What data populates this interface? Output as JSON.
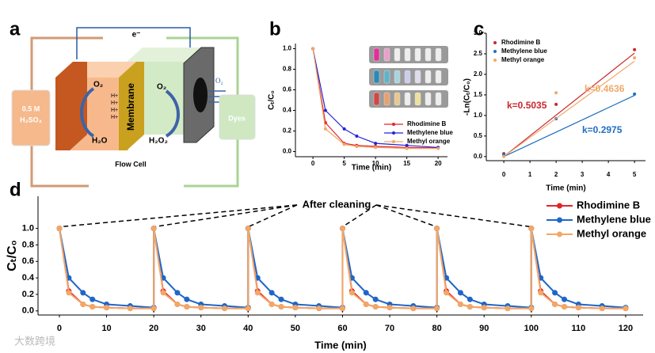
{
  "diagram": {
    "panel": "a",
    "electron": "e⁻",
    "left_o2": "O₂",
    "left_product": "H₂O",
    "membrane": "Membrane",
    "protons": [
      "H+",
      "H+",
      "H+",
      "H+"
    ],
    "right_o2": "O₂",
    "right_product": "H₂O₂",
    "inlet_o2": "O₂",
    "dyes": "Dyes",
    "electrolyte": [
      "0.5 M",
      "H₂SO₄"
    ],
    "caption": "Flow Cell"
  },
  "watermark": "大数跨境",
  "chart_data": [
    {
      "type": "line",
      "panel": "b",
      "x_label": "Time (min)",
      "y_label": "Cₜ/C₀",
      "legend": "lower right",
      "x": [
        0,
        2,
        5,
        7,
        10,
        15,
        20
      ],
      "xlim": [
        -2.8,
        21.5
      ],
      "xticks": [
        0,
        5,
        10,
        15,
        20
      ],
      "ylim": [
        -0.05,
        1.05
      ],
      "yticks": [
        {
          "value": 0,
          "label": "0.0"
        },
        {
          "value": 0.2,
          "label": "0.2"
        },
        {
          "value": 0.4,
          "label": "0.4"
        },
        {
          "value": 0.6,
          "label": "0.6"
        },
        {
          "value": 0.8,
          "label": "0.8"
        },
        {
          "value": 1,
          "label": "1.0"
        }
      ],
      "series": [
        {
          "name": "Rhodimine B",
          "color": "#e0242a",
          "values": [
            1.0,
            0.28,
            0.08,
            0.06,
            0.05,
            0.04,
            0.035
          ]
        },
        {
          "name": "Methylene blue",
          "color": "#2424d6",
          "values": [
            1.0,
            0.4,
            0.22,
            0.15,
            0.08,
            0.06,
            0.04
          ]
        },
        {
          "name": "Methyl orange",
          "color": "#f2a766",
          "values": [
            1.0,
            0.22,
            0.07,
            0.05,
            0.04,
            0.03,
            0.03
          ]
        }
      ]
    },
    {
      "type": "scatter",
      "panel": "c",
      "x_label": "Time (min)",
      "y_label": "-Ln(Cₜ/C₀)",
      "legend": "upper left",
      "x": [
        0,
        2,
        5
      ],
      "xlim": [
        -0.67,
        5.42
      ],
      "xticks": [
        0,
        1,
        2,
        3,
        4,
        5
      ],
      "ylim": [
        -0.1,
        3.0
      ],
      "yticks": [
        {
          "value": 0,
          "label": "0.0"
        },
        {
          "value": 0.5,
          "label": "0.5"
        },
        {
          "value": 1,
          "label": "1.0"
        },
        {
          "value": 1.5,
          "label": "1.5"
        },
        {
          "value": 2,
          "label": "2.0"
        },
        {
          "value": 2.5,
          "label": "2.5"
        },
        {
          "value": 3,
          "label": "3.0"
        }
      ],
      "series": [
        {
          "name": "Rhodimine B",
          "color": "#c8282c",
          "values": [
            0.07,
            1.27,
            2.6
          ],
          "fit": {
            "slope": 0.5035,
            "label": "k=0.5035"
          }
        },
        {
          "name": "Methylene blue",
          "color": "#1f6fc0",
          "values": [
            0.05,
            0.92,
            1.52
          ],
          "fit": {
            "slope": 0.2975,
            "label": "k=0.2975"
          }
        },
        {
          "name": "Methyl orange",
          "color": "#f0a868",
          "values": [
            0.0,
            1.55,
            2.4
          ],
          "fit": {
            "slope": 0.4636,
            "label": "k=0.4636"
          }
        }
      ]
    },
    {
      "type": "line",
      "panel": "d",
      "x_label": "Time (min)",
      "y_label": "Cₜ/C₀",
      "legend": "upper right",
      "annotation": "After cleaning",
      "x": [
        0,
        2,
        5,
        7,
        10,
        15,
        20,
        20,
        22,
        25,
        27,
        30,
        35,
        40,
        40,
        42,
        45,
        47,
        50,
        55,
        60,
        60,
        62,
        65,
        67,
        70,
        75,
        80,
        80,
        82,
        85,
        87,
        90,
        95,
        100,
        100,
        102,
        105,
        107,
        110,
        115,
        120
      ],
      "xlim": [
        -4.53,
        123.7
      ],
      "xticks": [
        0,
        10,
        20,
        30,
        40,
        50,
        60,
        70,
        80,
        90,
        100,
        110,
        120
      ],
      "ylim": [
        -0.05,
        1.39
      ],
      "yticks": [
        {
          "value": 0,
          "label": "0.0"
        },
        {
          "value": 0.2,
          "label": "0.2"
        },
        {
          "value": 0.4,
          "label": "0.4"
        },
        {
          "value": 0.6,
          "label": "0.6"
        },
        {
          "value": 0.8,
          "label": "0.8"
        },
        {
          "value": 1,
          "label": "1.0"
        }
      ],
      "series": [
        {
          "name": "Rhodimine B",
          "color": "#e0242a",
          "values": [
            1,
            0.24,
            0.08,
            0.05,
            0.04,
            0.03,
            0.03,
            1,
            0.24,
            0.08,
            0.05,
            0.04,
            0.03,
            0.03,
            1,
            0.24,
            0.08,
            0.05,
            0.04,
            0.03,
            0.03,
            1,
            0.24,
            0.08,
            0.05,
            0.04,
            0.03,
            0.03,
            1,
            0.24,
            0.08,
            0.05,
            0.04,
            0.03,
            0.03,
            1,
            0.24,
            0.08,
            0.05,
            0.04,
            0.03,
            0.03
          ]
        },
        {
          "name": "Methylene blue",
          "color": "#1f66c8",
          "values": [
            1,
            0.4,
            0.22,
            0.14,
            0.08,
            0.06,
            0.04,
            1,
            0.4,
            0.22,
            0.14,
            0.08,
            0.06,
            0.04,
            1,
            0.4,
            0.22,
            0.14,
            0.08,
            0.06,
            0.04,
            1,
            0.4,
            0.22,
            0.14,
            0.08,
            0.06,
            0.04,
            1,
            0.4,
            0.22,
            0.14,
            0.08,
            0.06,
            0.04,
            1,
            0.4,
            0.22,
            0.14,
            0.08,
            0.06,
            0.04
          ]
        },
        {
          "name": "Methyl orange",
          "color": "#f2a766",
          "values": [
            1,
            0.22,
            0.08,
            0.05,
            0.04,
            0.03,
            0.03,
            1,
            0.22,
            0.08,
            0.05,
            0.04,
            0.03,
            0.03,
            1,
            0.22,
            0.08,
            0.05,
            0.04,
            0.03,
            0.03,
            1,
            0.22,
            0.08,
            0.05,
            0.04,
            0.03,
            0.03,
            1,
            0.22,
            0.08,
            0.05,
            0.04,
            0.03,
            0.03,
            1,
            0.22,
            0.08,
            0.05,
            0.04,
            0.03,
            0.03
          ]
        }
      ]
    }
  ]
}
